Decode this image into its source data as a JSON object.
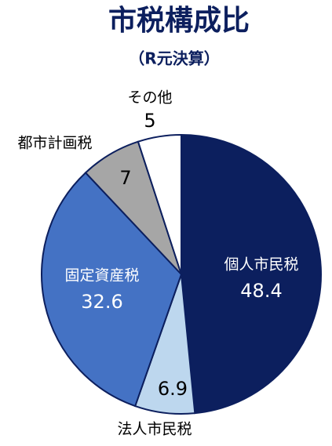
{
  "chart_data": {
    "type": "pie",
    "title": "市税構成比",
    "subtitle": "（R元決算）",
    "categories": [
      "個人市民税",
      "法人市民税",
      "固定資産税",
      "都市計画税",
      "その他"
    ],
    "values": [
      48.4,
      6.9,
      32.6,
      7.0,
      5.0
    ],
    "colors": [
      "#0c1f5e",
      "#bdd7ee",
      "#4472c4",
      "#a6a6a6",
      "#ffffff"
    ]
  }
}
